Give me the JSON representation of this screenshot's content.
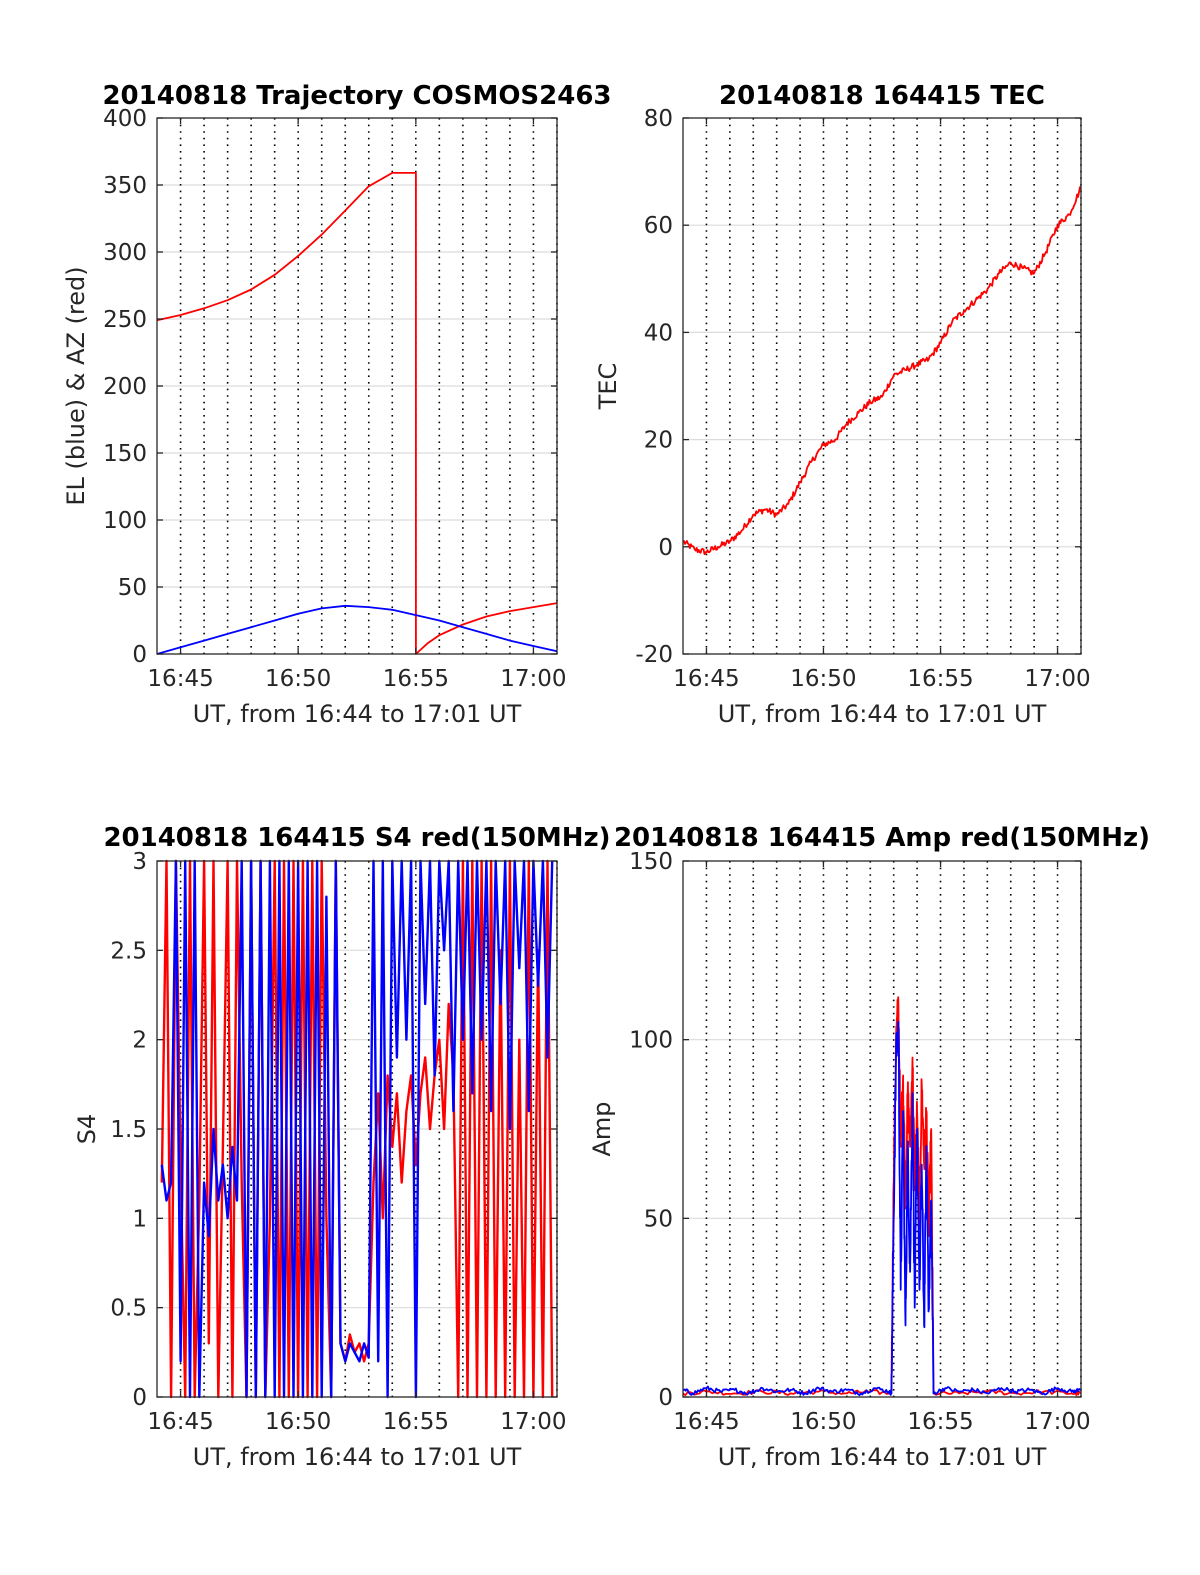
{
  "chart_data": [
    {
      "id": "trajectory",
      "type": "line",
      "title": "20140818 Trajectory COSMOS2463",
      "xlabel": "UT, from 16:44 to 17:01 UT",
      "ylabel": "EL (blue) & AZ (red)",
      "xlim": [
        16.7333,
        17.0167
      ],
      "ylim": [
        0,
        400
      ],
      "xticks": [
        16.75,
        16.8333,
        16.9167,
        17.0
      ],
      "xtick_labels": [
        "16:45",
        "16:50",
        "16:55",
        "17:00"
      ],
      "yticks": [
        0,
        50,
        100,
        150,
        200,
        250,
        300,
        350,
        400
      ],
      "ytick_labels": [
        "0",
        "50",
        "100",
        "150",
        "200",
        "250",
        "300",
        "350",
        "400"
      ],
      "grid": true,
      "series": [
        {
          "color": "#ff0000",
          "x": [
            16.7333,
            16.75,
            16.7667,
            16.7833,
            16.8,
            16.8167,
            16.8333,
            16.85,
            16.8667,
            16.8833,
            16.9,
            16.9167,
            16.9167,
            16.925,
            16.9333,
            16.95,
            16.9667,
            16.9833,
            17.0,
            17.0167
          ],
          "y": [
            249,
            253,
            258,
            264,
            272,
            283,
            297,
            313,
            331,
            349,
            359,
            359,
            0,
            8,
            14,
            22,
            28,
            32,
            35,
            38
          ]
        },
        {
          "color": "#0000ff",
          "x": [
            16.7333,
            16.75,
            16.7667,
            16.7833,
            16.8,
            16.8167,
            16.8333,
            16.85,
            16.8667,
            16.8833,
            16.9,
            16.9167,
            16.9333,
            16.95,
            16.9667,
            16.9833,
            17.0,
            17.0167
          ],
          "y": [
            0,
            5,
            10,
            15,
            20,
            25,
            30,
            34,
            36,
            35,
            33,
            29,
            25,
            20,
            15,
            10,
            6,
            2
          ]
        }
      ]
    },
    {
      "id": "tec",
      "type": "line",
      "title": "20140818 164415 TEC",
      "xlabel": "UT, from 16:44 to 17:01 UT",
      "ylabel": "TEC",
      "xlim": [
        16.7333,
        17.0167
      ],
      "ylim": [
        -20,
        80
      ],
      "xticks": [
        16.75,
        16.8333,
        16.9167,
        17.0
      ],
      "xtick_labels": [
        "16:45",
        "16:50",
        "16:55",
        "17:00"
      ],
      "yticks": [
        -20,
        0,
        20,
        40,
        60,
        80
      ],
      "ytick_labels": [
        "-20",
        "0",
        "20",
        "40",
        "60",
        "80"
      ],
      "grid": true,
      "series": [
        {
          "color": "#ff0000",
          "x": [
            16.7333,
            16.7417,
            16.75,
            16.7583,
            16.7667,
            16.775,
            16.7833,
            16.7917,
            16.8,
            16.8083,
            16.8167,
            16.825,
            16.8333,
            16.8417,
            16.85,
            16.8583,
            16.8667,
            16.875,
            16.8833,
            16.8917,
            16.9,
            16.9083,
            16.9167,
            16.925,
            16.9333,
            16.9417,
            16.95,
            16.9583,
            16.9667,
            16.975,
            16.9833,
            16.9917,
            17.0,
            17.0083,
            17.0167
          ],
          "y": [
            1,
            -0.5,
            -1,
            0,
            1,
            3,
            6,
            7,
            6,
            8,
            12,
            16,
            19,
            20,
            23,
            25,
            27,
            28,
            32,
            33,
            34,
            35,
            38,
            42,
            44,
            46,
            48,
            51,
            53,
            52,
            51,
            55,
            60,
            62,
            67
          ]
        }
      ]
    },
    {
      "id": "s4",
      "type": "line",
      "title": "20140818 164415 S4 red(150MHz)",
      "xlabel": "UT, from 16:44 to 17:01 UT",
      "ylabel": "S4",
      "xlim": [
        16.7333,
        17.0167
      ],
      "ylim": [
        0,
        3
      ],
      "xticks": [
        16.75,
        16.8333,
        16.9167,
        17.0
      ],
      "xtick_labels": [
        "16:45",
        "16:50",
        "16:55",
        "17:00"
      ],
      "yticks": [
        0,
        0.5,
        1,
        1.5,
        2,
        2.5,
        3
      ],
      "ytick_labels": [
        "0",
        "0.5",
        "1",
        "1.5",
        "2",
        "2.5",
        "3"
      ],
      "grid": true,
      "series": [
        {
          "color": "#ff0000",
          "x": [
            16.7367,
            16.74,
            16.7433,
            16.7467,
            16.75,
            16.7533,
            16.7567,
            16.76,
            16.7633,
            16.7667,
            16.77,
            16.7733,
            16.7767,
            16.78,
            16.7833,
            16.7867,
            16.79,
            16.7933,
            16.7967,
            16.8,
            16.8033,
            16.8067,
            16.81,
            16.8133,
            16.8167,
            16.82,
            16.8233,
            16.8267,
            16.83,
            16.8333,
            16.8367,
            16.84,
            16.8433,
            16.8467,
            16.85,
            16.8533,
            16.8567,
            16.86,
            16.8633,
            16.8667,
            16.87,
            16.8733,
            16.8767,
            16.88,
            16.8833,
            16.8867,
            16.89,
            16.8933,
            16.8967,
            16.9,
            16.9033,
            16.9067,
            16.91,
            16.9133,
            16.9167,
            16.92,
            16.9233,
            16.9267,
            16.93,
            16.9333,
            16.9367,
            16.94,
            16.9433,
            16.9467,
            16.95,
            16.9533,
            16.9567,
            16.96,
            16.9633,
            16.9667,
            16.97,
            16.9733,
            16.9767,
            16.98,
            16.9833,
            16.9867,
            16.99,
            16.9933,
            16.9967,
            17.0,
            17.0033,
            17.0067,
            17.01,
            17.0133
          ],
          "y": [
            1.2,
            3.0,
            0.0,
            3.0,
            1.3,
            0.0,
            3.0,
            0.0,
            1.1,
            3.0,
            0.3,
            3.0,
            0.0,
            1.4,
            3.0,
            0.0,
            3.0,
            1.2,
            0.0,
            3.0,
            0.0,
            3.0,
            0.0,
            1.0,
            3.0,
            0.0,
            3.0,
            0.0,
            3.0,
            0.0,
            3.0,
            0.0,
            3.0,
            0.0,
            3.0,
            1.0,
            0.0,
            3.0,
            0.3,
            0.2,
            0.35,
            0.25,
            0.3,
            0.2,
            0.3,
            1.2,
            1.7,
            1.0,
            1.8,
            1.4,
            1.7,
            1.2,
            1.6,
            1.8,
            1.3,
            1.7,
            1.9,
            1.5,
            1.8,
            2.0,
            1.5,
            2.2,
            1.8,
            0.0,
            3.0,
            0.0,
            3.0,
            0.0,
            3.0,
            0.0,
            3.0,
            0.0,
            2.5,
            0.0,
            3.0,
            0.0,
            2.0,
            0.0,
            3.0,
            0.0,
            2.5,
            0.0,
            3.0,
            0.0
          ]
        },
        {
          "color": "#0000ff",
          "x": [
            16.7367,
            16.74,
            16.7433,
            16.7467,
            16.75,
            16.7533,
            16.7567,
            16.76,
            16.7633,
            16.7667,
            16.77,
            16.7733,
            16.7767,
            16.78,
            16.7833,
            16.7867,
            16.79,
            16.7933,
            16.7967,
            16.8,
            16.8033,
            16.8067,
            16.81,
            16.8133,
            16.8167,
            16.82,
            16.8233,
            16.8267,
            16.83,
            16.8333,
            16.8367,
            16.84,
            16.8433,
            16.8467,
            16.85,
            16.8533,
            16.8567,
            16.86,
            16.8633,
            16.8667,
            16.87,
            16.8733,
            16.8767,
            16.88,
            16.8833,
            16.8867,
            16.89,
            16.8933,
            16.8967,
            16.9,
            16.9033,
            16.9067,
            16.91,
            16.9133,
            16.9167,
            16.92,
            16.9233,
            16.9267,
            16.93,
            16.9333,
            16.9367,
            16.94,
            16.9433,
            16.9467,
            16.95,
            16.9533,
            16.9567,
            16.96,
            16.9633,
            16.9667,
            16.97,
            16.9733,
            16.9767,
            16.98,
            16.9833,
            16.9867,
            16.99,
            16.9933,
            16.9967,
            17.0,
            17.0033,
            17.0067,
            17.01,
            17.0133
          ],
          "y": [
            1.3,
            1.1,
            1.2,
            3.0,
            0.2,
            3.0,
            0.0,
            3.0,
            0.0,
            1.2,
            0.9,
            1.5,
            1.1,
            1.3,
            1.0,
            1.4,
            1.1,
            3.0,
            0.0,
            3.0,
            0.0,
            3.0,
            0.0,
            3.0,
            0.0,
            3.0,
            0.0,
            3.0,
            0.0,
            3.0,
            0.0,
            3.0,
            0.0,
            3.0,
            0.0,
            2.8,
            0.0,
            3.0,
            0.3,
            0.2,
            0.3,
            0.25,
            0.2,
            0.3,
            0.22,
            3.0,
            0.2,
            3.0,
            0.0,
            3.0,
            1.9,
            3.0,
            2.0,
            3.0,
            0.0,
            3.0,
            2.2,
            3.0,
            1.8,
            3.0,
            2.5,
            3.0,
            1.6,
            3.0,
            2.0,
            3.0,
            1.7,
            3.0,
            2.0,
            3.0,
            1.6,
            3.0,
            2.2,
            3.0,
            1.5,
            3.0,
            2.4,
            3.0,
            1.6,
            3.0,
            2.3,
            3.0,
            1.9,
            3.0
          ]
        }
      ]
    },
    {
      "id": "amp",
      "type": "line",
      "title": "20140818 164415 Amp red(150MHz)",
      "xlabel": "UT, from 16:44 to 17:01 UT",
      "ylabel": "Amp",
      "xlim": [
        16.7333,
        17.0167
      ],
      "ylim": [
        0,
        150
      ],
      "xticks": [
        16.75,
        16.8333,
        16.9167,
        17.0
      ],
      "xtick_labels": [
        "16:45",
        "16:50",
        "16:55",
        "17:00"
      ],
      "yticks": [
        0,
        50,
        100,
        150
      ],
      "ytick_labels": [
        "0",
        "50",
        "100",
        "150"
      ],
      "grid": true,
      "series": [
        {
          "color": "#ff0000",
          "x": [
            16.7333,
            16.75,
            16.77,
            16.79,
            16.81,
            16.83,
            16.85,
            16.865,
            16.8817,
            16.8833,
            16.885,
            16.8867,
            16.8883,
            16.89,
            16.8917,
            16.8933,
            16.895,
            16.8967,
            16.8983,
            16.9,
            16.9017,
            16.9033,
            16.905,
            16.9067,
            16.9083,
            16.91,
            16.9117,
            16.93,
            16.95,
            16.97,
            16.99,
            17.01,
            17.0167
          ],
          "y": [
            1,
            1.5,
            1,
            1.5,
            1,
            1.5,
            1,
            1.5,
            1,
            60,
            100,
            110,
            70,
            90,
            55,
            85,
            70,
            95,
            60,
            80,
            50,
            88,
            65,
            80,
            45,
            75,
            1,
            1,
            1.5,
            1,
            1.5,
            1,
            1
          ]
        },
        {
          "color": "#0000ff",
          "x": [
            16.7333,
            16.74,
            16.75,
            16.76,
            16.77,
            16.78,
            16.79,
            16.8,
            16.81,
            16.82,
            16.83,
            16.84,
            16.85,
            16.86,
            16.87,
            16.88,
            16.8817,
            16.8833,
            16.885,
            16.8867,
            16.8883,
            16.89,
            16.8917,
            16.8933,
            16.895,
            16.8967,
            16.8983,
            16.9,
            16.9017,
            16.9033,
            16.905,
            16.9067,
            16.9083,
            16.91,
            16.9117,
            16.92,
            16.93,
            16.94,
            16.95,
            16.96,
            16.97,
            16.98,
            16.99,
            17.0,
            17.01,
            17.0167
          ],
          "y": [
            2,
            1,
            2.5,
            1.5,
            2,
            1,
            2.5,
            1.5,
            2,
            1,
            2.5,
            1.5,
            2,
            1,
            2.5,
            1.5,
            1,
            50,
            95,
            105,
            30,
            80,
            20,
            70,
            35,
            85,
            25,
            75,
            30,
            65,
            20,
            70,
            25,
            55,
            1,
            2.5,
            1.5,
            2,
            1,
            2.5,
            1.5,
            2,
            1,
            2.5,
            1.5,
            2
          ]
        }
      ]
    }
  ]
}
